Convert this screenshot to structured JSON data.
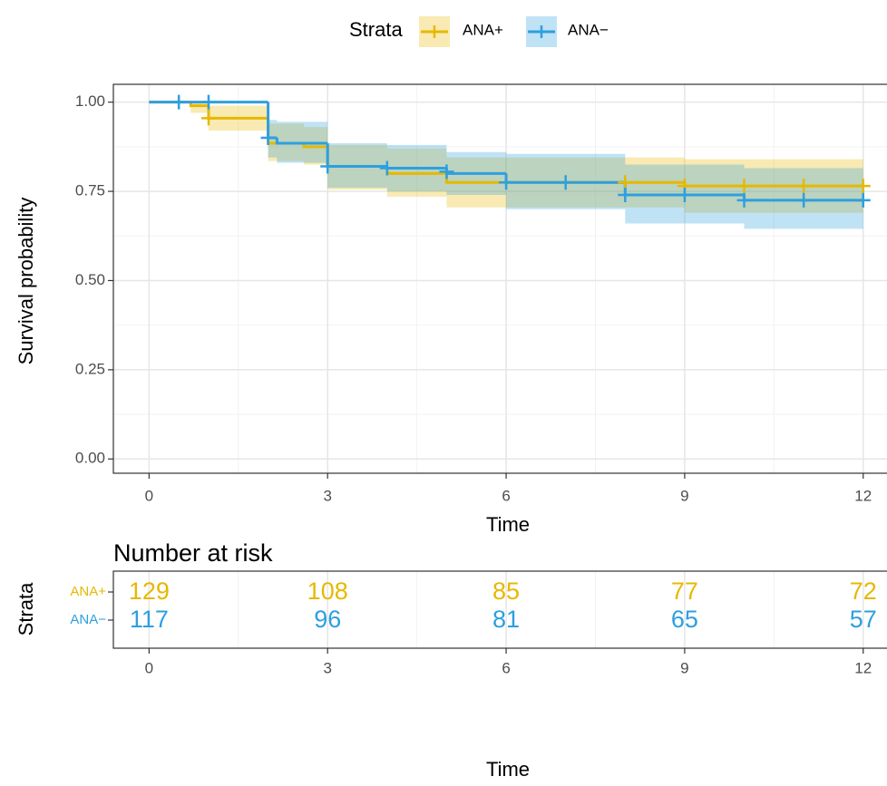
{
  "chart_data": [
    {
      "type": "km_step",
      "legend_title": "Strata",
      "x_label": "Time",
      "y_label": "Survival probability",
      "xlim": [
        -0.6,
        12.4
      ],
      "xticks": [
        0,
        3,
        6,
        9,
        12
      ],
      "ylim": [
        -0.04,
        1.05
      ],
      "yticks": [
        {
          "value": 0,
          "label": "0.00"
        },
        {
          "value": 0.25,
          "label": "0.25"
        },
        {
          "value": 0.5,
          "label": "0.50"
        },
        {
          "value": 0.75,
          "label": "0.75"
        },
        {
          "value": 1,
          "label": "1.00"
        }
      ],
      "grid": true,
      "minor_grid": true,
      "legend_position": "top",
      "series": [
        {
          "name": "ANA+",
          "color": "#E7B800",
          "x": [
            0,
            0.7,
            1,
            2,
            2.6,
            3,
            4,
            5,
            9,
            12
          ],
          "values": [
            1,
            0.99,
            0.955,
            0.885,
            0.875,
            0.82,
            0.8,
            0.775,
            0.765,
            0.765
          ],
          "lower": [
            1,
            0.97,
            0.92,
            0.835,
            0.825,
            0.755,
            0.735,
            0.705,
            0.69,
            0.69
          ],
          "upper": [
            1,
            1,
            0.99,
            0.94,
            0.93,
            0.88,
            0.87,
            0.845,
            0.84,
            0.84
          ],
          "censor_x": [
            1,
            8,
            9,
            10,
            11,
            12
          ],
          "censor_values": [
            0.955,
            0.775,
            0.765,
            0.765,
            0.765,
            0.765
          ]
        },
        {
          "name": "ANA−",
          "color": "#2E9FDF",
          "x": [
            0,
            2,
            2.15,
            3,
            4,
            5,
            6,
            8,
            10,
            12
          ],
          "values": [
            1,
            0.9,
            0.885,
            0.82,
            0.815,
            0.8,
            0.775,
            0.74,
            0.725,
            0.725
          ],
          "lower": [
            1,
            0.845,
            0.83,
            0.76,
            0.75,
            0.74,
            0.7,
            0.66,
            0.645,
            0.645
          ],
          "upper": [
            1,
            0.95,
            0.945,
            0.885,
            0.88,
            0.86,
            0.855,
            0.825,
            0.815,
            0.815
          ],
          "censor_x": [
            0.5,
            1,
            2,
            3,
            4,
            5,
            6,
            7,
            8,
            9,
            10,
            11,
            12
          ],
          "censor_values": [
            1,
            1,
            0.9,
            0.82,
            0.815,
            0.805,
            0.775,
            0.775,
            0.74,
            0.74,
            0.725,
            0.725,
            0.725
          ]
        }
      ]
    },
    {
      "type": "risk_table",
      "title": "Number at risk",
      "x_label": "Time",
      "y_label": "Strata",
      "xlim": [
        -0.6,
        12.4
      ],
      "xticks": [
        0,
        3,
        6,
        9,
        12
      ],
      "grid": true,
      "minor_grid": true,
      "x": [
        0,
        3,
        6,
        9,
        12
      ],
      "series": [
        {
          "name": "ANA+",
          "color": "#E7B800",
          "values": [
            129,
            108,
            85,
            77,
            72
          ]
        },
        {
          "name": "ANA−",
          "color": "#2E9FDF",
          "values": [
            117,
            96,
            81,
            65,
            57
          ]
        }
      ]
    }
  ]
}
